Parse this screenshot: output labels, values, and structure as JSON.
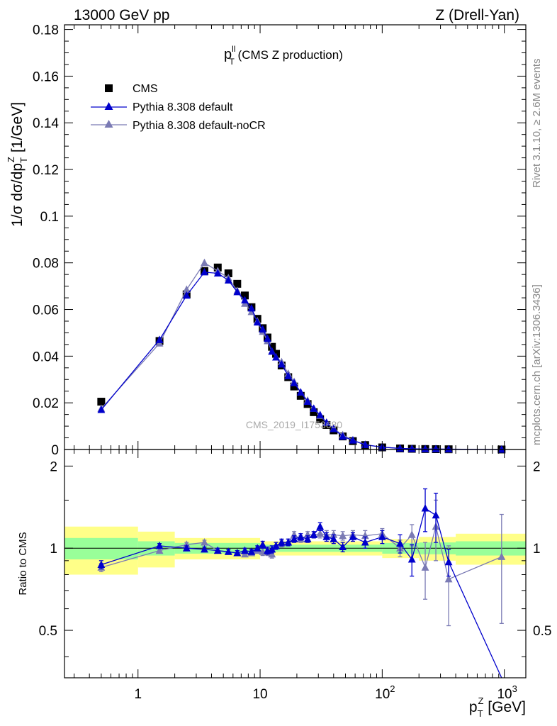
{
  "header": {
    "left": "13000 GeV pp",
    "right": "Z (Drell-Yan)"
  },
  "side_labels": {
    "rivet": "Rivet 3.1.10, ≥ 2.6M events",
    "mcplots": "mcplots.cern.ch [arXiv:1306.3436]"
  },
  "watermark": "CMS_2019_I1753680",
  "colors": {
    "cms": "#000000",
    "pythia_default": "#0000cc",
    "pythia_nocr": "#7a7ab4",
    "band_inner": "#99ff99",
    "band_outer": "#ffff88"
  },
  "chart_data": [
    {
      "type": "scatter",
      "title": "p_T^ll (CMS Z production)",
      "title_main": "p",
      "title_sub": "T",
      "title_sup": "ll",
      "title_rest": " (CMS Z production)",
      "ylabel": "1/σ dσ/dp_T^Z [1/GeV]",
      "ylabel_parts": [
        "1/σ dσ/dp",
        "T",
        "Z",
        " [1/GeV]"
      ],
      "x_scale": "log",
      "xlim": [
        0.25,
        1500
      ],
      "ylim": [
        0,
        0.182
      ],
      "y_ticks": [
        "0",
        "0.02",
        "0.04",
        "0.06",
        "0.08",
        "0.1",
        "0.12",
        "0.14",
        "0.16",
        "0.18"
      ],
      "y_tick_values": [
        0,
        0.02,
        0.04,
        0.06,
        0.08,
        0.1,
        0.12,
        0.14,
        0.16,
        0.18
      ],
      "legend_position": "top-left",
      "series": [
        {
          "name": "CMS",
          "marker": "square",
          "x": [
            0.5,
            1.5,
            2.5,
            3.5,
            4.5,
            5.5,
            6.5,
            7.5,
            8.5,
            9.5,
            10.5,
            11.5,
            12.5,
            13.5,
            15,
            17,
            19,
            21.5,
            24.5,
            27.5,
            31,
            35,
            40,
            47.5,
            57.5,
            72.5,
            100,
            140,
            175,
            225,
            275,
            350,
            950
          ],
          "y": [
            0.0205,
            0.0465,
            0.0665,
            0.0765,
            0.078,
            0.0755,
            0.071,
            0.066,
            0.061,
            0.056,
            0.052,
            0.048,
            0.044,
            0.041,
            0.036,
            0.031,
            0.027,
            0.023,
            0.0195,
            0.016,
            0.013,
            0.0105,
            0.0082,
            0.0056,
            0.0036,
            0.0019,
            0.0009,
            0.00045,
            0.0003,
            0.0002,
            0.00015,
            0.0001,
            1e-05
          ]
        },
        {
          "name": "Pythia 8.308 default",
          "marker": "triangle",
          "x": [
            0.5,
            1.5,
            2.5,
            3.5,
            4.5,
            5.5,
            6.5,
            7.5,
            8.5,
            9.5,
            10.5,
            11.5,
            12.5,
            13.5,
            15,
            17,
            19,
            21.5,
            24.5,
            27.5,
            31,
            35,
            40,
            47.5,
            57.5,
            72.5,
            100,
            140,
            175,
            225,
            275,
            350,
            950
          ],
          "y": [
            0.017,
            0.047,
            0.066,
            0.076,
            0.0755,
            0.0725,
            0.0675,
            0.064,
            0.0605,
            0.0545,
            0.0515,
            0.0475,
            0.042,
            0.0395,
            0.0365,
            0.0315,
            0.0285,
            0.0245,
            0.0205,
            0.0175,
            0.0148,
            0.0115,
            0.0088,
            0.0056,
            0.0039,
            0.002,
            0.00098,
            0.00047,
            0.00028,
            0.00018,
            0.00021,
            0.00014,
            3.5e-06
          ]
        },
        {
          "name": "Pythia 8.308 default-noCR",
          "marker": "triangle",
          "x": [
            0.5,
            1.5,
            2.5,
            3.5,
            4.5,
            5.5,
            6.5,
            7.5,
            8.5,
            9.5,
            10.5,
            11.5,
            12.5,
            13.5,
            15,
            17,
            19,
            21.5,
            24.5,
            27.5,
            31,
            35,
            40,
            47.5,
            57.5,
            72.5,
            100,
            140,
            175,
            225,
            275,
            350,
            950
          ],
          "y": [
            0.0175,
            0.0455,
            0.0685,
            0.08,
            0.0765,
            0.0735,
            0.068,
            0.0625,
            0.059,
            0.055,
            0.0505,
            0.0465,
            0.042,
            0.0395,
            0.0375,
            0.0325,
            0.029,
            0.0245,
            0.021,
            0.0175,
            0.0145,
            0.0115,
            0.009,
            0.0062,
            0.004,
            0.0021,
            0.00102,
            0.00045,
            0.00034,
            0.00017,
            0.00018,
            7.8e-05,
            9.4e-06
          ]
        }
      ]
    },
    {
      "type": "scatter",
      "title": "",
      "ylabel": "Ratio to CMS",
      "xlabel": "p_T^Z [GeV]",
      "xlabel_parts": [
        "p",
        "T",
        "Z",
        " [GeV]"
      ],
      "x_scale": "log",
      "xlim": [
        0.25,
        1500
      ],
      "ylim": [
        0.335,
        2.3
      ],
      "x_tick_labels": [
        {
          "value": 1,
          "base": "1",
          "exp": ""
        },
        {
          "value": 10,
          "base": "10",
          "exp": ""
        },
        {
          "value": 100,
          "base": "10",
          "exp": "2"
        },
        {
          "value": 1000,
          "base": "10",
          "exp": "3"
        }
      ],
      "y_ticks": [
        "0.5",
        "1",
        "2"
      ],
      "y_tick_values": [
        0.5,
        1,
        2
      ],
      "uncertainty_bands": {
        "inner_half_width": [
          [
            0.25,
            1,
            0.09
          ],
          [
            1,
            2,
            0.06
          ],
          [
            2,
            10,
            0.045
          ],
          [
            10,
            100,
            0.03
          ],
          [
            100,
            200,
            0.045
          ],
          [
            200,
            400,
            0.05
          ],
          [
            400,
            1500,
            0.06
          ]
        ],
        "outer_half_width": [
          [
            0.25,
            1,
            0.2
          ],
          [
            1,
            2,
            0.15
          ],
          [
            2,
            10,
            0.09
          ],
          [
            10,
            100,
            0.06
          ],
          [
            100,
            200,
            0.08
          ],
          [
            200,
            400,
            0.1
          ],
          [
            400,
            1500,
            0.13
          ]
        ]
      },
      "series": [
        {
          "name": "Pythia 8.308 default",
          "marker": "triangle",
          "x": [
            0.5,
            1.5,
            2.5,
            3.5,
            4.5,
            5.5,
            6.5,
            7.5,
            8.5,
            9.5,
            10.5,
            11.5,
            12.5,
            13.5,
            15,
            17,
            19,
            21.5,
            24.5,
            27.5,
            31,
            35,
            40,
            47.5,
            57.5,
            72.5,
            100,
            140,
            175,
            225,
            275,
            350,
            950
          ],
          "y": [
            0.87,
            1.02,
            1.0,
            0.99,
            0.98,
            0.97,
            0.96,
            0.98,
            0.97,
            1.0,
            1.03,
            0.98,
            0.99,
            1.02,
            1.05,
            1.05,
            1.08,
            1.1,
            1.08,
            1.12,
            1.2,
            1.1,
            1.08,
            1.01,
            1.1,
            1.05,
            1.1,
            1.04,
            0.91,
            1.4,
            1.32,
            0.89,
            0.3
          ],
          "err": [
            0.03,
            0.02,
            0.02,
            0.02,
            0.02,
            0.02,
            0.02,
            0.02,
            0.02,
            0.02,
            0.03,
            0.03,
            0.03,
            0.03,
            0.03,
            0.03,
            0.03,
            0.03,
            0.03,
            0.03,
            0.04,
            0.04,
            0.04,
            0.04,
            0.04,
            0.05,
            0.06,
            0.08,
            0.12,
            0.25,
            0.27,
            0.1,
            0.0
          ]
        },
        {
          "name": "Pythia 8.308 default-noCR",
          "marker": "triangle",
          "x": [
            0.5,
            1.5,
            2.5,
            3.5,
            4.5,
            5.5,
            6.5,
            7.5,
            8.5,
            9.5,
            10.5,
            11.5,
            12.5,
            13.5,
            15,
            17,
            19,
            21.5,
            24.5,
            27.5,
            31,
            35,
            40,
            47.5,
            57.5,
            72.5,
            100,
            140,
            175,
            225,
            275,
            350,
            950
          ],
          "y": [
            0.85,
            0.98,
            1.03,
            1.05,
            0.98,
            0.97,
            0.96,
            0.95,
            0.96,
            0.98,
            0.97,
            0.97,
            0.95,
            1.02,
            1.04,
            1.05,
            1.12,
            1.08,
            1.12,
            1.12,
            1.13,
            1.12,
            1.12,
            1.11,
            1.12,
            1.11,
            1.13,
            1.0,
            1.12,
            0.85,
            1.2,
            0.77,
            0.93
          ],
          "err": [
            0.03,
            0.02,
            0.02,
            0.02,
            0.02,
            0.02,
            0.02,
            0.02,
            0.02,
            0.02,
            0.03,
            0.03,
            0.03,
            0.03,
            0.03,
            0.03,
            0.03,
            0.03,
            0.03,
            0.03,
            0.04,
            0.04,
            0.04,
            0.04,
            0.04,
            0.05,
            0.05,
            0.07,
            0.1,
            0.2,
            0.3,
            0.25,
            0.4
          ]
        }
      ]
    }
  ]
}
